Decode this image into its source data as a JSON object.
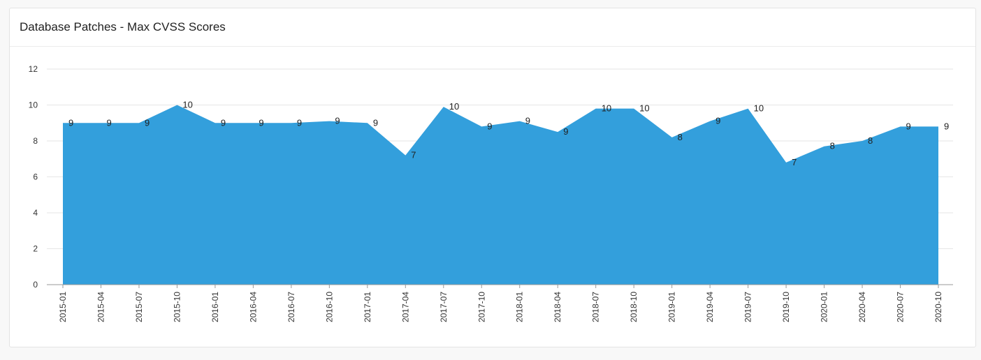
{
  "panel": {
    "title": "Database Patches - Max CVSS Scores"
  },
  "chart_data": {
    "type": "area",
    "title": "Database Patches - Max CVSS Scores",
    "xlabel": "",
    "ylabel": "",
    "ylim": [
      0,
      12
    ],
    "yticks": [
      0,
      2,
      4,
      6,
      8,
      10,
      12
    ],
    "grid": true,
    "legend": "none",
    "color": "#339fdc",
    "categories": [
      "2015-01",
      "2015-04",
      "2015-07",
      "2015-10",
      "2016-01",
      "2016-04",
      "2016-07",
      "2016-10",
      "2017-01",
      "2017-04",
      "2017-07",
      "2017-10",
      "2018-01",
      "2018-04",
      "2018-07",
      "2018-10",
      "2019-01",
      "2019-04",
      "2019-07",
      "2019-10",
      "2020-01",
      "2020-04",
      "2020-07",
      "2020-10"
    ],
    "values": [
      9.0,
      9.0,
      9.0,
      10.0,
      9.0,
      9.0,
      9.0,
      9.1,
      9.0,
      7.2,
      9.9,
      8.8,
      9.1,
      8.5,
      9.8,
      9.8,
      8.2,
      9.1,
      9.8,
      6.8,
      7.7,
      8.0,
      8.8,
      8.8
    ],
    "labels": [
      "9",
      "9",
      "9",
      "10",
      "9",
      "9",
      "9",
      "9",
      "9",
      "7",
      "10",
      "9",
      "9",
      "9",
      "10",
      "10",
      "8",
      "9",
      "10",
      "7",
      "8",
      "8",
      "9",
      "9"
    ]
  }
}
